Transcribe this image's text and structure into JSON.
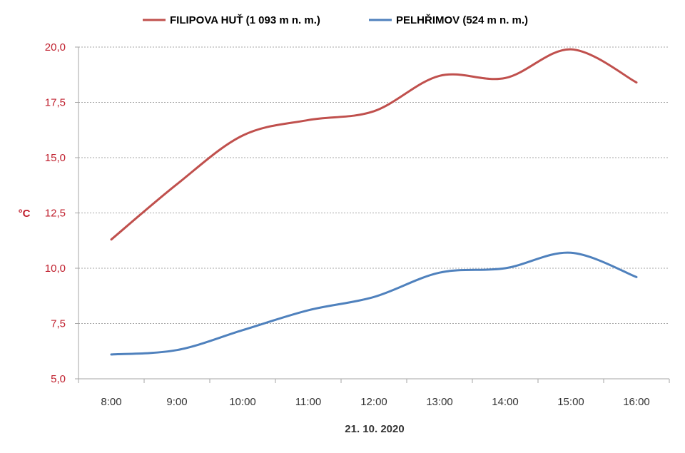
{
  "chart_data": {
    "type": "line",
    "title": "",
    "xlabel": "21. 10. 2020",
    "ylabel": "°C",
    "categories": [
      "8:00",
      "9:00",
      "10:00",
      "11:00",
      "12:00",
      "13:00",
      "14:00",
      "15:00",
      "16:00"
    ],
    "ylim": [
      5.0,
      20.0
    ],
    "yticks": [
      "5,0",
      "7,5",
      "10,0",
      "12,5",
      "15,0",
      "17,5",
      "20,0"
    ],
    "grid": true,
    "legend_position": "top",
    "axis_color": "#C0202E",
    "series": [
      {
        "name": "FILIPOVA HUŤ (1 093 m n. m.)",
        "color": "#C0504D",
        "values": [
          11.3,
          13.8,
          16.0,
          16.7,
          17.1,
          18.7,
          18.6,
          19.9,
          18.4
        ]
      },
      {
        "name": "PELHŘIMOV (524 m n. m.)",
        "color": "#4F81BD",
        "values": [
          6.1,
          6.3,
          7.2,
          8.1,
          8.7,
          9.8,
          10.0,
          10.7,
          9.6
        ]
      }
    ]
  }
}
